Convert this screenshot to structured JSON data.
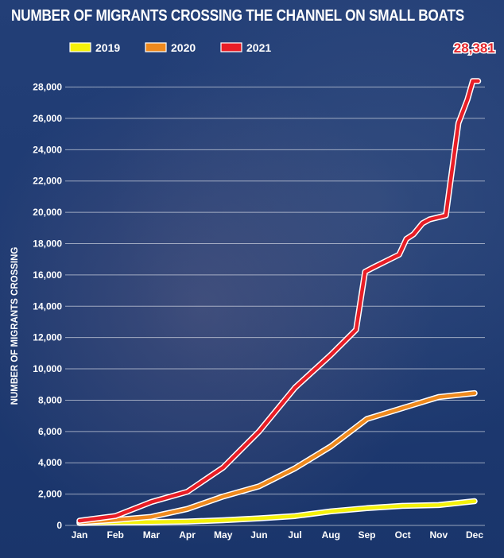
{
  "colors": {
    "s2019": "#f4f10a",
    "s2020": "#ef8a1e",
    "s2021": "#e81e26",
    "outline": "#ffffff",
    "grid": "#ffffff",
    "background": "#1b3a72"
  },
  "chart_data": {
    "type": "line",
    "title": "NUMBER OF MIGRANTS CROSSING THE CHANNEL ON SMALL BOATS",
    "ylabel": "NUMBER OF MIGRANTS CROSSING",
    "xlabel": "",
    "x_labels": [
      "Jan",
      "Feb",
      "Mar",
      "Apr",
      "May",
      "Jun",
      "Jul",
      "Aug",
      "Sep",
      "Oct",
      "Nov",
      "Dec"
    ],
    "y_ticks": [
      0,
      2000,
      4000,
      6000,
      8000,
      10000,
      12000,
      14000,
      16000,
      18000,
      20000,
      22000,
      24000,
      26000,
      28000
    ],
    "y_tick_labels": [
      "0",
      "2,000",
      "4,000",
      "6,000",
      "8,000",
      "10,000",
      "12,000",
      "14,000",
      "16,000",
      "18,000",
      "20,000",
      "22,000",
      "24,000",
      "26,000",
      "28,000"
    ],
    "ylim": [
      0,
      29500
    ],
    "xlim": [
      0,
      11
    ],
    "grid": true,
    "legend_position": "top-left",
    "series": [
      {
        "name": "2019",
        "points": [
          [
            0,
            150
          ],
          [
            1,
            200
          ],
          [
            2,
            220
          ],
          [
            3,
            250
          ],
          [
            4,
            330
          ],
          [
            5,
            450
          ],
          [
            6,
            600
          ],
          [
            7,
            900
          ],
          [
            8,
            1100
          ],
          [
            9,
            1250
          ],
          [
            10,
            1300
          ],
          [
            11,
            1550
          ]
        ]
      },
      {
        "name": "2020",
        "points": [
          [
            0,
            200
          ],
          [
            1,
            350
          ],
          [
            2,
            550
          ],
          [
            3,
            1050
          ],
          [
            4,
            1850
          ],
          [
            5,
            2500
          ],
          [
            6,
            3650
          ],
          [
            7,
            5050
          ],
          [
            8,
            6800
          ],
          [
            9,
            7500
          ],
          [
            10,
            8200
          ],
          [
            11,
            8450
          ]
        ]
      },
      {
        "name": "2021",
        "points": [
          [
            0,
            300
          ],
          [
            1,
            600
          ],
          [
            2,
            1500
          ],
          [
            3,
            2150
          ],
          [
            4,
            3700
          ],
          [
            5,
            6000
          ],
          [
            6,
            8800
          ],
          [
            7,
            10900
          ],
          [
            7.7,
            12500
          ],
          [
            7.95,
            16200
          ],
          [
            8.2,
            16500
          ],
          [
            8.9,
            17300
          ],
          [
            9.1,
            18300
          ],
          [
            9.3,
            18600
          ],
          [
            9.55,
            19300
          ],
          [
            9.75,
            19550
          ],
          [
            10.2,
            19800
          ],
          [
            10.3,
            21500
          ],
          [
            10.55,
            25700
          ],
          [
            10.8,
            27200
          ],
          [
            10.95,
            28381
          ],
          [
            11.1,
            28381
          ]
        ]
      }
    ],
    "annotations": [
      {
        "text": "28,381",
        "x": 10.95,
        "y": 28381
      }
    ]
  }
}
